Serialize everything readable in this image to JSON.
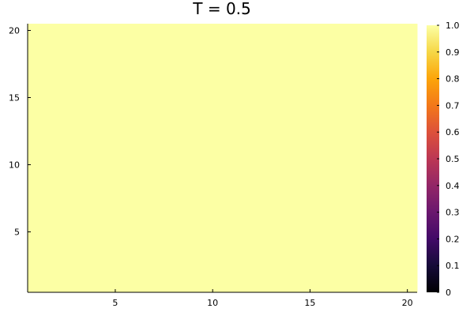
{
  "chart_data": {
    "type": "heatmap",
    "title": "T = 0.5",
    "xlabel": "",
    "ylabel": "",
    "x_range": [
      0.5,
      20.5
    ],
    "y_range": [
      0.5,
      20.5
    ],
    "x_ticks": [
      5,
      10,
      15,
      20
    ],
    "y_ticks": [
      5,
      10,
      15,
      20
    ],
    "grid": false,
    "nx": 20,
    "ny": 20,
    "uniform_value": 1.0,
    "colorbar": {
      "colormap": "inferno",
      "range": [
        0,
        1
      ],
      "ticks": [
        "0",
        "0.1",
        "0.2",
        "0.3",
        "0.4",
        "0.5",
        "0.6",
        "0.7",
        "0.8",
        "0.9",
        "1.0"
      ],
      "position": "right"
    }
  }
}
